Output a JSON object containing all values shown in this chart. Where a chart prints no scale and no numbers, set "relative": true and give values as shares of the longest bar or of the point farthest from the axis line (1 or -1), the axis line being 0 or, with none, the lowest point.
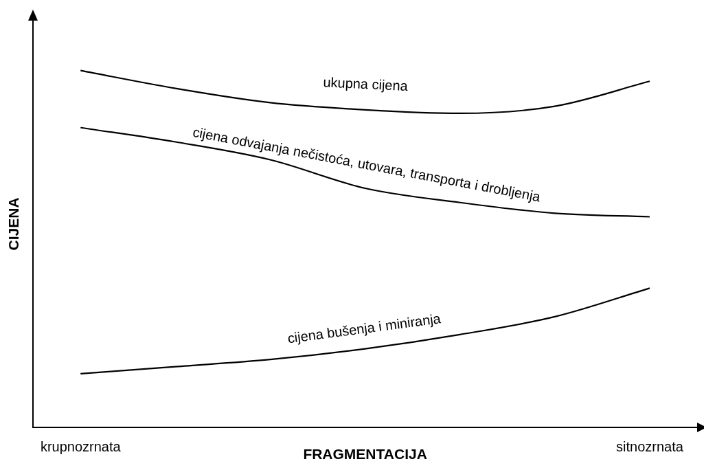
{
  "chart_data": {
    "type": "line",
    "relative": true,
    "xlabel": "FRAGMENTACIJA",
    "ylabel": "CIJENA",
    "categories": [
      "krupnozrnata",
      null,
      null,
      null,
      null,
      null,
      "sitnozrnata"
    ],
    "series": [
      {
        "name": "ukupna cijena",
        "color": "#000000",
        "values": [
          1,
          0.95,
          0.91,
          0.89,
          0.88,
          0.9,
          0.97
        ]
      },
      {
        "name": "cijena odvajanja nečistoća, utovara, transporta i drobljenja",
        "color": "#000000",
        "values": [
          0.84,
          0.8,
          0.75,
          0.67,
          0.63,
          0.6,
          0.59
        ]
      },
      {
        "name": "cijena bušenja i miniranja",
        "color": "#000000",
        "values": [
          0.15,
          0.17,
          0.19,
          0.22,
          0.26,
          0.31,
          0.39
        ]
      }
    ],
    "marker": "none",
    "line_style": "solid",
    "grid": false,
    "legend": false
  }
}
